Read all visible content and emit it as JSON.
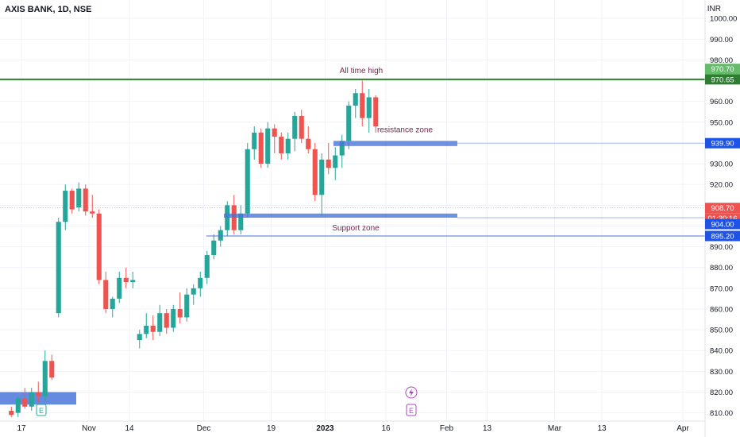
{
  "header": {
    "ticker": "AXIS BANK, 1D, NSE",
    "currency": "INR"
  },
  "colors": {
    "up": "#26a69a",
    "down": "#ef5350",
    "ath": "#2e7d32",
    "zone": "#4a76d9",
    "annotation": "#7b1f4a"
  },
  "chart_data": {
    "type": "candlestick",
    "title": "AXIS BANK, 1D, NSE",
    "ylabel": "INR",
    "ylim": [
      805,
      1010
    ],
    "y_ticks": [
      810,
      820,
      830,
      840,
      850,
      860,
      870,
      880,
      890,
      900,
      910,
      920,
      930,
      940,
      950,
      960,
      970,
      980,
      990,
      1000
    ],
    "y_tick_labels": [
      "810.00",
      "820.00",
      "830.00",
      "840.00",
      "850.00",
      "860.00",
      "870.00",
      "880.00",
      "890.00",
      "900.00",
      "910.00",
      "920.00",
      "930.00",
      "940.00",
      "950.00",
      "960.00",
      "970.00",
      "980.00",
      "990.00",
      "1000.00"
    ],
    "x_ticks": [
      {
        "label": "17",
        "bar": 2
      },
      {
        "label": "Nov",
        "bar": 12
      },
      {
        "label": "14",
        "bar": 18
      },
      {
        "label": "Dec",
        "bar": 29
      },
      {
        "label": "19",
        "bar": 39
      },
      {
        "label": "2023",
        "bar": 47
      },
      {
        "label": "16",
        "bar": 56
      },
      {
        "label": "Feb",
        "bar": 65
      },
      {
        "label": "13",
        "bar": 71
      },
      {
        "label": "Mar",
        "bar": 81
      },
      {
        "label": "13",
        "bar": 88
      },
      {
        "label": "Apr",
        "bar": 100
      }
    ],
    "candles": [
      {
        "o": 811,
        "h": 813,
        "l": 808,
        "c": 809
      },
      {
        "o": 810,
        "h": 818,
        "l": 808,
        "c": 817
      },
      {
        "o": 817,
        "h": 822,
        "l": 812,
        "c": 813
      },
      {
        "o": 813,
        "h": 822,
        "l": 811,
        "c": 820
      },
      {
        "o": 820,
        "h": 825,
        "l": 815,
        "c": 818
      },
      {
        "o": 818,
        "h": 840,
        "l": 816,
        "c": 835
      },
      {
        "o": 835,
        "h": 838,
        "l": 826,
        "c": 827
      },
      {
        "o": 858,
        "h": 904,
        "l": 856,
        "c": 902
      },
      {
        "o": 902,
        "h": 920,
        "l": 898,
        "c": 917
      },
      {
        "o": 917,
        "h": 918,
        "l": 906,
        "c": 908
      },
      {
        "o": 909,
        "h": 921,
        "l": 907,
        "c": 918
      },
      {
        "o": 918,
        "h": 920,
        "l": 905,
        "c": 907
      },
      {
        "o": 907,
        "h": 915,
        "l": 904,
        "c": 906
      },
      {
        "o": 906,
        "h": 908,
        "l": 872,
        "c": 874
      },
      {
        "o": 874,
        "h": 878,
        "l": 858,
        "c": 860
      },
      {
        "o": 860,
        "h": 866,
        "l": 856,
        "c": 865
      },
      {
        "o": 865,
        "h": 878,
        "l": 863,
        "c": 875
      },
      {
        "o": 875,
        "h": 880,
        "l": 870,
        "c": 873
      },
      {
        "o": 873,
        "h": 878,
        "l": 870,
        "c": 874
      },
      {
        "o": 845,
        "h": 850,
        "l": 841,
        "c": 848
      },
      {
        "o": 848,
        "h": 858,
        "l": 846,
        "c": 852
      },
      {
        "o": 852,
        "h": 857,
        "l": 845,
        "c": 849
      },
      {
        "o": 849,
        "h": 862,
        "l": 847,
        "c": 858
      },
      {
        "o": 858,
        "h": 860,
        "l": 848,
        "c": 851
      },
      {
        "o": 851,
        "h": 862,
        "l": 849,
        "c": 860
      },
      {
        "o": 860,
        "h": 868,
        "l": 853,
        "c": 856
      },
      {
        "o": 856,
        "h": 870,
        "l": 854,
        "c": 867
      },
      {
        "o": 867,
        "h": 872,
        "l": 862,
        "c": 870
      },
      {
        "o": 870,
        "h": 878,
        "l": 866,
        "c": 875
      },
      {
        "o": 875,
        "h": 888,
        "l": 872,
        "c": 886
      },
      {
        "o": 886,
        "h": 896,
        "l": 884,
        "c": 893
      },
      {
        "o": 893,
        "h": 900,
        "l": 890,
        "c": 898
      },
      {
        "o": 898,
        "h": 912,
        "l": 895,
        "c": 910
      },
      {
        "o": 910,
        "h": 915,
        "l": 896,
        "c": 898
      },
      {
        "o": 898,
        "h": 910,
        "l": 896,
        "c": 906
      },
      {
        "o": 906,
        "h": 940,
        "l": 904,
        "c": 937
      },
      {
        "o": 937,
        "h": 948,
        "l": 932,
        "c": 945
      },
      {
        "o": 945,
        "h": 947,
        "l": 928,
        "c": 930
      },
      {
        "o": 930,
        "h": 950,
        "l": 928,
        "c": 947
      },
      {
        "o": 947,
        "h": 949,
        "l": 935,
        "c": 943
      },
      {
        "o": 943,
        "h": 945,
        "l": 932,
        "c": 935
      },
      {
        "o": 935,
        "h": 945,
        "l": 932,
        "c": 942
      },
      {
        "o": 942,
        "h": 955,
        "l": 936,
        "c": 953
      },
      {
        "o": 953,
        "h": 956,
        "l": 940,
        "c": 942
      },
      {
        "o": 942,
        "h": 948,
        "l": 935,
        "c": 937
      },
      {
        "o": 937,
        "h": 940,
        "l": 912,
        "c": 915
      },
      {
        "o": 915,
        "h": 935,
        "l": 905,
        "c": 932
      },
      {
        "o": 932,
        "h": 940,
        "l": 925,
        "c": 928
      },
      {
        "o": 928,
        "h": 938,
        "l": 922,
        "c": 934
      },
      {
        "o": 934,
        "h": 944,
        "l": 928,
        "c": 941
      },
      {
        "o": 941,
        "h": 960,
        "l": 937,
        "c": 958
      },
      {
        "o": 958,
        "h": 966,
        "l": 952,
        "c": 964
      },
      {
        "o": 964,
        "h": 970,
        "l": 948,
        "c": 952
      },
      {
        "o": 952,
        "h": 966,
        "l": 945,
        "c": 962
      },
      {
        "o": 962,
        "h": 963,
        "l": 945,
        "c": 948
      }
    ],
    "annotations": [
      {
        "label": "All time high",
        "type": "horizontal-line",
        "value": 970.65
      },
      {
        "label": "resistance zone",
        "type": "zone",
        "value": 939.9
      },
      {
        "label": "Support zone",
        "type": "zone",
        "value": 904
      }
    ],
    "price_labels": [
      "970.70",
      "970.65",
      "939.90",
      "908.70",
      "01:30:16",
      "904.00",
      "895.20"
    ],
    "event_markers": [
      "E",
      "E"
    ]
  }
}
